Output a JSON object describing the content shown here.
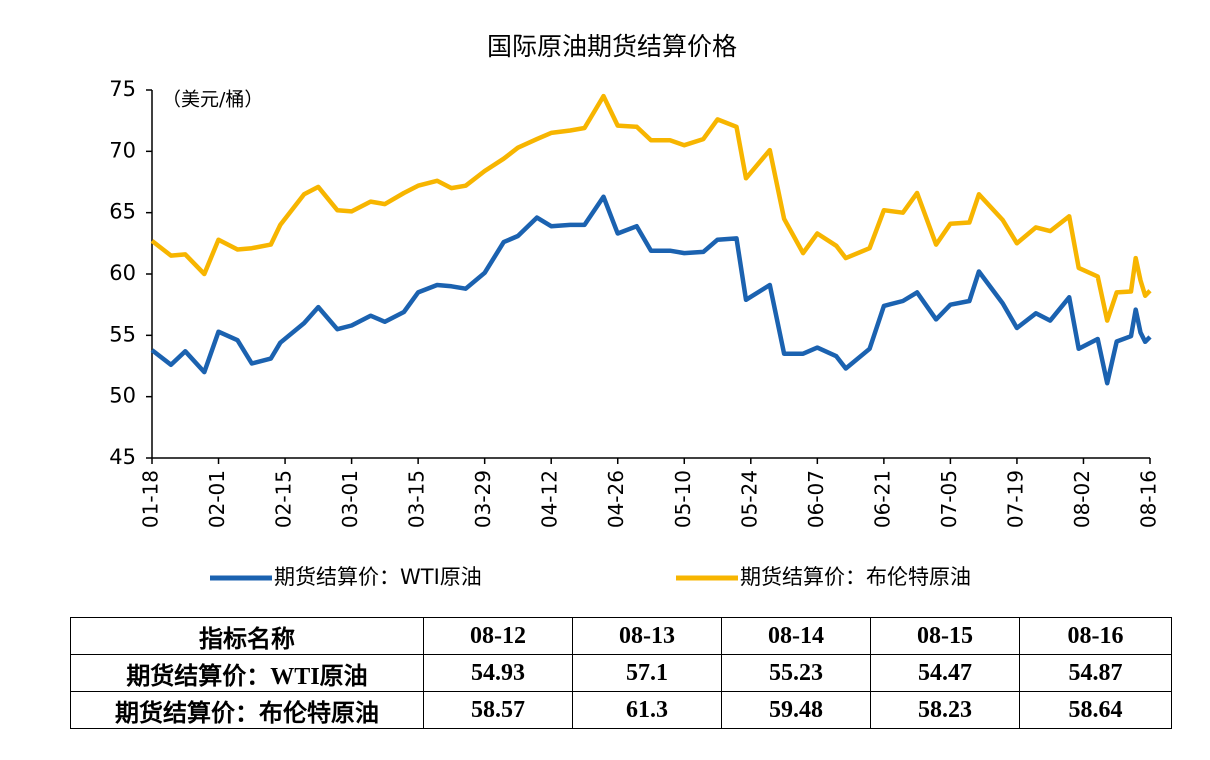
{
  "chart_data": {
    "type": "line",
    "title": "国际原油期货结算价格",
    "y_label": "（美元/桶）",
    "x": [
      "01-18",
      "01-22",
      "01-25",
      "01-29",
      "02-01",
      "02-05",
      "02-08",
      "02-12",
      "02-14",
      "02-19",
      "02-22",
      "02-26",
      "03-01",
      "03-05",
      "03-08",
      "03-12",
      "03-15",
      "03-19",
      "03-22",
      "03-25",
      "03-29",
      "04-02",
      "04-05",
      "04-09",
      "04-12",
      "04-16",
      "04-19",
      "04-23",
      "04-26",
      "04-30",
      "05-03",
      "05-07",
      "05-10",
      "05-14",
      "05-17",
      "05-21",
      "05-23",
      "05-28",
      "05-31",
      "06-04",
      "06-07",
      "06-11",
      "06-13",
      "06-18",
      "06-21",
      "06-25",
      "06-28",
      "07-02",
      "07-05",
      "07-09",
      "07-11",
      "07-16",
      "07-19",
      "07-23",
      "07-26",
      "07-30",
      "08-01",
      "08-05",
      "08-07",
      "08-09",
      "08-12",
      "08-13",
      "08-14",
      "08-15",
      "08-16"
    ],
    "series": [
      {
        "name": "期货结算价：WTI原油",
        "color": "#1b62b0",
        "values": [
          53.8,
          52.6,
          53.7,
          52.0,
          55.3,
          54.6,
          52.7,
          53.1,
          54.4,
          56.0,
          57.3,
          55.5,
          55.8,
          56.6,
          56.1,
          56.9,
          58.5,
          59.1,
          59.0,
          58.8,
          60.1,
          62.6,
          63.1,
          64.6,
          63.9,
          64.0,
          64.0,
          66.3,
          63.3,
          63.9,
          61.9,
          61.9,
          61.7,
          61.8,
          62.8,
          62.9,
          57.9,
          59.1,
          53.5,
          53.5,
          54.0,
          53.3,
          52.3,
          53.9,
          57.4,
          57.8,
          58.5,
          56.3,
          57.5,
          57.8,
          60.2,
          57.6,
          55.6,
          56.8,
          56.2,
          58.1,
          53.9,
          54.7,
          51.1,
          54.5,
          54.93,
          57.1,
          55.23,
          54.47,
          54.87
        ]
      },
      {
        "name": "期货结算价：布伦特原油",
        "color": "#f7b500",
        "values": [
          62.7,
          61.5,
          61.6,
          60.0,
          62.8,
          62.0,
          62.1,
          62.4,
          64.0,
          66.5,
          67.1,
          65.2,
          65.1,
          65.9,
          65.7,
          66.6,
          67.2,
          67.6,
          67.0,
          67.2,
          68.4,
          69.4,
          70.3,
          71.0,
          71.5,
          71.7,
          71.9,
          74.5,
          72.1,
          72.0,
          70.9,
          70.9,
          70.5,
          71.0,
          72.6,
          72.0,
          67.8,
          70.1,
          64.5,
          61.7,
          63.3,
          62.3,
          61.3,
          62.1,
          65.2,
          65.0,
          66.6,
          62.4,
          64.1,
          64.2,
          66.5,
          64.4,
          62.5,
          63.8,
          63.5,
          64.7,
          60.5,
          59.8,
          56.2,
          58.5,
          58.57,
          61.3,
          59.48,
          58.23,
          58.64
        ]
      }
    ],
    "ylim": [
      45,
      75
    ],
    "yticks": [
      45,
      50,
      55,
      60,
      65,
      70,
      75
    ],
    "xticks": [
      "01-18",
      "02-01",
      "02-15",
      "03-01",
      "03-15",
      "03-29",
      "04-12",
      "04-26",
      "05-10",
      "05-24",
      "06-07",
      "06-21",
      "07-05",
      "07-19",
      "08-02",
      "08-16"
    ],
    "legend": "bottom"
  },
  "table": {
    "header": [
      "指标名称",
      "08-12",
      "08-13",
      "08-14",
      "08-15",
      "08-16"
    ],
    "rows": [
      [
        "期货结算价：WTI原油",
        "54.93",
        "57.1",
        "55.23",
        "54.47",
        "54.87"
      ],
      [
        "期货结算价：布伦特原油",
        "58.57",
        "61.3",
        "59.48",
        "58.23",
        "58.64"
      ]
    ]
  }
}
